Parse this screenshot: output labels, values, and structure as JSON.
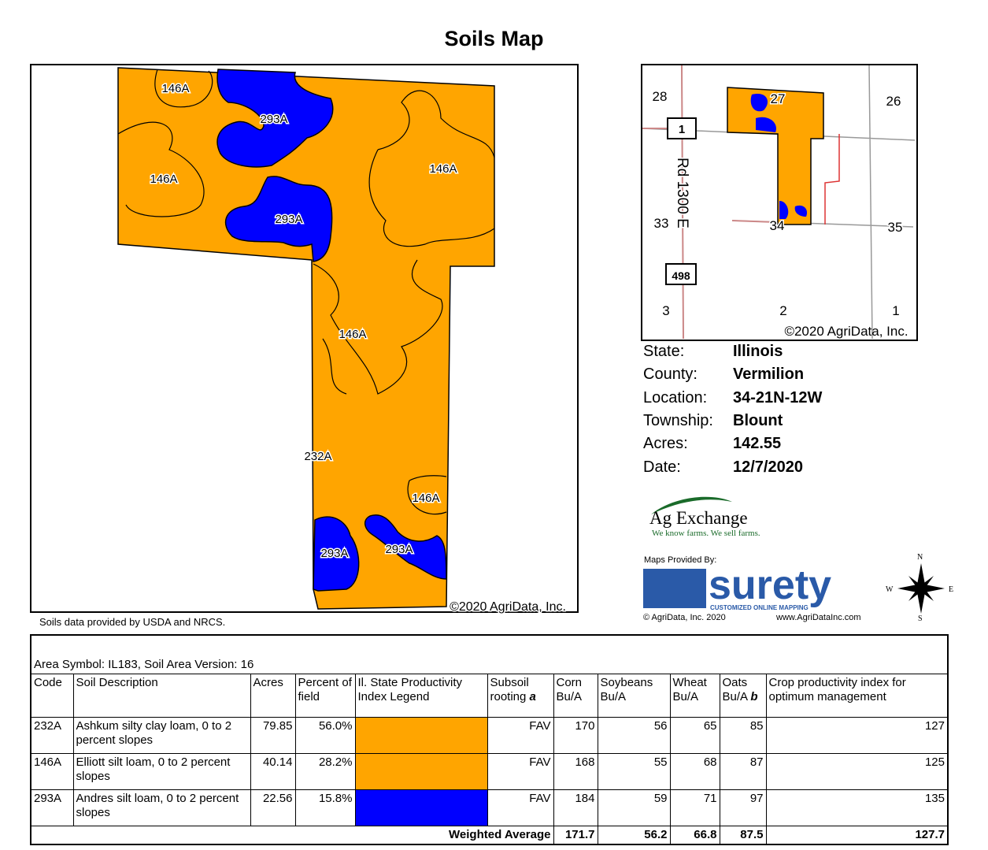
{
  "title": "Soils Map",
  "map": {
    "labels": [
      "146A",
      "293A",
      "146A",
      "146A",
      "293A",
      "146A",
      "232A",
      "146A",
      "293A",
      "293A"
    ],
    "copyright": "©2020 AgriData, Inc.",
    "colors": {
      "232A": "#FFA500",
      "146A": "#FFA500",
      "293A": "#0000FF"
    }
  },
  "inset": {
    "labels": [
      "28",
      "27",
      "26",
      "1",
      "33",
      "34",
      "35",
      "3",
      "2",
      "1"
    ],
    "road": "Rd 1300 E",
    "shield": "498",
    "copyright": "©2020 AgriData, Inc."
  },
  "info": [
    {
      "k": "State:",
      "v": "Illinois"
    },
    {
      "k": "County:",
      "v": "Vermilion"
    },
    {
      "k": "Location:",
      "v": "34-21N-12W"
    },
    {
      "k": "Township:",
      "v": "Blount"
    },
    {
      "k": "Acres:",
      "v": "142.55"
    },
    {
      "k": "Date:",
      "v": "12/7/2020"
    }
  ],
  "logos": {
    "ag_name": "Ag Exchange",
    "ag_tag": "We know farms. We sell farms.",
    "maps_by": "Maps Provided By:",
    "surety": "surety",
    "surety_tag": "CUSTOMIZED ONLINE MAPPING",
    "agridata": "© AgriData, Inc. 2020",
    "url": "www.AgriDataInc.com",
    "compass": [
      "N",
      "S",
      "W",
      "E"
    ]
  },
  "source_note": "Soils data provided by USDA and NRCS.",
  "table": {
    "area": "Area Symbol: IL183, Soil Area Version: 16",
    "headers": [
      "Code",
      "Soil Description",
      "Acres",
      "Percent of field",
      "Il. State Productivity Index Legend",
      "Subsoil rooting",
      "Corn Bu/A",
      "Soybeans Bu/A",
      "Wheat Bu/A",
      "Oats Bu/A",
      "Crop productivity index for optimum management"
    ],
    "header_marks": {
      "subsoil": "a",
      "oats": "b"
    },
    "rows": [
      {
        "code": "232A",
        "desc": "Ashkum silty clay loam, 0 to 2 percent slopes",
        "acres": "79.85",
        "pct": "56.0%",
        "color": "#FFA500",
        "subsoil": "FAV",
        "corn": "170",
        "soy": "56",
        "wheat": "65",
        "oats": "85",
        "cpi": "127"
      },
      {
        "code": "146A",
        "desc": "Elliott silt loam, 0 to 2 percent slopes",
        "acres": "40.14",
        "pct": "28.2%",
        "color": "#FFA500",
        "subsoil": "FAV",
        "corn": "168",
        "soy": "55",
        "wheat": "68",
        "oats": "87",
        "cpi": "125"
      },
      {
        "code": "293A",
        "desc": "Andres silt loam, 0 to 2 percent slopes",
        "acres": "22.56",
        "pct": "15.8%",
        "color": "#0000FF",
        "subsoil": "FAV",
        "corn": "184",
        "soy": "59",
        "wheat": "71",
        "oats": "97",
        "cpi": "135"
      }
    ],
    "weighted": {
      "label": "Weighted Average",
      "corn": "171.7",
      "soy": "56.2",
      "wheat": "66.8",
      "oats": "87.5",
      "cpi": "127.7"
    }
  }
}
